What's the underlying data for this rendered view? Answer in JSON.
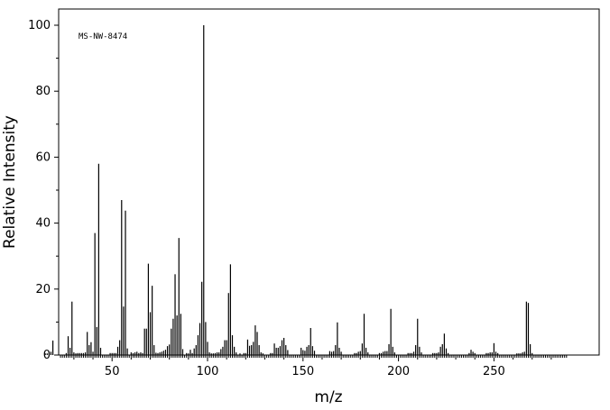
{
  "chart_data": {
    "type": "bar",
    "annotation": "MS-NW-8474",
    "xlabel": "m/z",
    "ylabel": "Relative Intensity",
    "xlim": [
      10,
      290
    ],
    "ylim": [
      0,
      100
    ],
    "x_ticks": [
      50,
      100,
      150,
      200,
      250
    ],
    "y_ticks": [
      0,
      20,
      40,
      60,
      80,
      100
    ],
    "grid": false,
    "peaks": [
      [
        15,
        0.5
      ],
      [
        16,
        0.5
      ],
      [
        17,
        0.6
      ],
      [
        18,
        1.0
      ],
      [
        19,
        4.4
      ],
      [
        26,
        0.6
      ],
      [
        27,
        5.7
      ],
      [
        28,
        2.2
      ],
      [
        29,
        16.2
      ],
      [
        30,
        0.8
      ],
      [
        31,
        0.5
      ],
      [
        32,
        0.6
      ],
      [
        33,
        0.6
      ],
      [
        34,
        0.6
      ],
      [
        35,
        0.6
      ],
      [
        36,
        0.8
      ],
      [
        37,
        7.0
      ],
      [
        38,
        3.0
      ],
      [
        39,
        3.9
      ],
      [
        40,
        1.0
      ],
      [
        41,
        37.0
      ],
      [
        42,
        8.5
      ],
      [
        43,
        58.0
      ],
      [
        44,
        2.2
      ],
      [
        49,
        0.6
      ],
      [
        50,
        0.6
      ],
      [
        51,
        0.6
      ],
      [
        52,
        0.6
      ],
      [
        53,
        2.5
      ],
      [
        54,
        4.5
      ],
      [
        55,
        47.0
      ],
      [
        56,
        14.7
      ],
      [
        57,
        43.8
      ],
      [
        58,
        2.0
      ],
      [
        60,
        0.8
      ],
      [
        61,
        0.6
      ],
      [
        62,
        0.8
      ],
      [
        63,
        1.0
      ],
      [
        64,
        0.6
      ],
      [
        65,
        0.8
      ],
      [
        66,
        0.6
      ],
      [
        67,
        8.0
      ],
      [
        68,
        8.0
      ],
      [
        69,
        27.7
      ],
      [
        70,
        13.0
      ],
      [
        71,
        21.0
      ],
      [
        72,
        3.0
      ],
      [
        73,
        0.7
      ],
      [
        74,
        0.6
      ],
      [
        75,
        0.8
      ],
      [
        76,
        1.0
      ],
      [
        77,
        1.3
      ],
      [
        78,
        1.6
      ],
      [
        79,
        2.7
      ],
      [
        80,
        3.2
      ],
      [
        81,
        8.0
      ],
      [
        82,
        11.0
      ],
      [
        83,
        24.5
      ],
      [
        84,
        12.0
      ],
      [
        85,
        35.5
      ],
      [
        86,
        12.5
      ],
      [
        87,
        1.8
      ],
      [
        89,
        0.6
      ],
      [
        90,
        0.5
      ],
      [
        91,
        1.6
      ],
      [
        92,
        0.6
      ],
      [
        93,
        2.0
      ],
      [
        94,
        3.0
      ],
      [
        95,
        6.0
      ],
      [
        96,
        9.7
      ],
      [
        97,
        22.2
      ],
      [
        98,
        100.0
      ],
      [
        99,
        10.0
      ],
      [
        100,
        4.0
      ],
      [
        101,
        0.8
      ],
      [
        102,
        0.5
      ],
      [
        103,
        0.5
      ],
      [
        104,
        0.6
      ],
      [
        105,
        0.8
      ],
      [
        106,
        0.8
      ],
      [
        107,
        1.8
      ],
      [
        108,
        2.5
      ],
      [
        109,
        4.5
      ],
      [
        110,
        4.5
      ],
      [
        111,
        18.8
      ],
      [
        112,
        27.5
      ],
      [
        113,
        6.0
      ],
      [
        114,
        2.5
      ],
      [
        115,
        0.8
      ],
      [
        117,
        0.5
      ],
      [
        119,
        0.6
      ],
      [
        120,
        0.6
      ],
      [
        121,
        4.7
      ],
      [
        122,
        2.8
      ],
      [
        123,
        3.0
      ],
      [
        124,
        4.0
      ],
      [
        125,
        9.0
      ],
      [
        126,
        7.0
      ],
      [
        127,
        3.0
      ],
      [
        128,
        0.8
      ],
      [
        129,
        0.5
      ],
      [
        133,
        0.6
      ],
      [
        134,
        0.6
      ],
      [
        135,
        3.5
      ],
      [
        136,
        2.2
      ],
      [
        137,
        2.2
      ],
      [
        138,
        2.7
      ],
      [
        139,
        4.5
      ],
      [
        140,
        5.2
      ],
      [
        141,
        3.0
      ],
      [
        142,
        1.5
      ],
      [
        149,
        2.2
      ],
      [
        150,
        1.5
      ],
      [
        151,
        1.3
      ],
      [
        152,
        2.5
      ],
      [
        153,
        3.0
      ],
      [
        154,
        8.2
      ],
      [
        155,
        2.7
      ],
      [
        156,
        1.3
      ],
      [
        164,
        1.2
      ],
      [
        165,
        1.0
      ],
      [
        166,
        1.2
      ],
      [
        167,
        3.0
      ],
      [
        168,
        9.9
      ],
      [
        169,
        2.2
      ],
      [
        170,
        1.0
      ],
      [
        177,
        0.6
      ],
      [
        178,
        0.6
      ],
      [
        179,
        1.0
      ],
      [
        180,
        1.2
      ],
      [
        181,
        3.5
      ],
      [
        182,
        12.5
      ],
      [
        183,
        2.2
      ],
      [
        184,
        0.8
      ],
      [
        190,
        0.6
      ],
      [
        191,
        0.6
      ],
      [
        192,
        1.0
      ],
      [
        193,
        1.2
      ],
      [
        194,
        1.2
      ],
      [
        195,
        3.3
      ],
      [
        196,
        14.0
      ],
      [
        197,
        2.5
      ],
      [
        198,
        0.8
      ],
      [
        205,
        0.6
      ],
      [
        206,
        0.6
      ],
      [
        207,
        0.6
      ],
      [
        208,
        1.0
      ],
      [
        209,
        3.0
      ],
      [
        210,
        11.0
      ],
      [
        211,
        2.5
      ],
      [
        212,
        0.8
      ],
      [
        218,
        0.6
      ],
      [
        219,
        0.6
      ],
      [
        220,
        0.6
      ],
      [
        221,
        0.8
      ],
      [
        222,
        2.5
      ],
      [
        223,
        3.3
      ],
      [
        224,
        6.5
      ],
      [
        225,
        2.0
      ],
      [
        226,
        0.6
      ],
      [
        237,
        0.6
      ],
      [
        238,
        1.6
      ],
      [
        239,
        1.0
      ],
      [
        240,
        0.6
      ],
      [
        246,
        0.6
      ],
      [
        247,
        0.6
      ],
      [
        248,
        0.8
      ],
      [
        249,
        0.8
      ],
      [
        250,
        3.6
      ],
      [
        251,
        1.0
      ],
      [
        252,
        0.6
      ],
      [
        262,
        0.5
      ],
      [
        263,
        0.5
      ],
      [
        264,
        0.5
      ],
      [
        265,
        0.8
      ],
      [
        266,
        1.0
      ],
      [
        267,
        16.2
      ],
      [
        268,
        15.8
      ],
      [
        269,
        3.3
      ],
      [
        270,
        0.6
      ]
    ]
  }
}
